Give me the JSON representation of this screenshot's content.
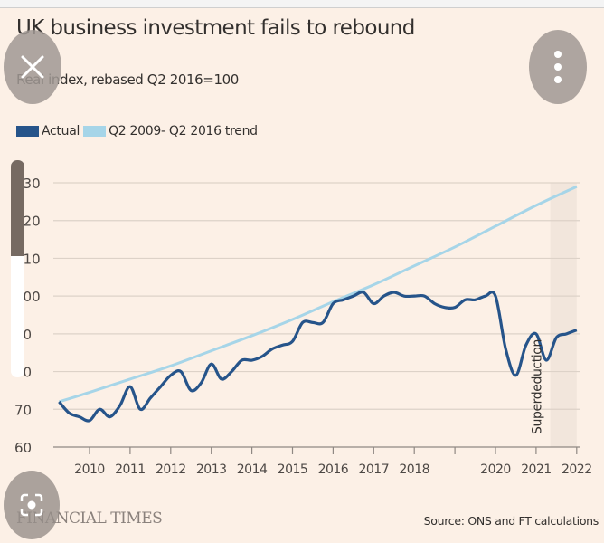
{
  "title": "UK business investment fails to rebound",
  "subtitle": "Real index, rebased Q2 2016=100",
  "source": "Source: ONS and FT calculations",
  "brand": "FINANCIAL TIMES",
  "ui": {
    "close_icon": "close-icon",
    "more_icon": "more-vertical-icon",
    "lens_icon": "lens-search-icon",
    "scroll_position": 0.44
  },
  "colors": {
    "background": "#fcf0e6",
    "actual": "#26548a",
    "trend": "#a6d5e8",
    "grid": "#ddd2c8"
  },
  "chart_data": {
    "type": "line",
    "title": "UK business investment fails to rebound",
    "subtitle": "Real index, rebased Q2 2016=100",
    "xlabel": "",
    "ylabel": "",
    "ylim": [
      60,
      130
    ],
    "yticks": [
      60,
      70,
      80,
      90,
      100,
      110,
      120,
      130
    ],
    "xtick_labels": [
      "2010",
      "2011",
      "2012",
      "2013",
      "2014",
      "2015",
      "2016",
      "2017",
      "2018",
      "",
      "2020",
      "2021",
      "2022"
    ],
    "xticks": [
      2010,
      2011,
      2012,
      2013,
      2014,
      2015,
      2016,
      2017,
      2018,
      2019,
      2020,
      2021,
      2022
    ],
    "grid": "horizontal",
    "legend": {
      "placement": "top-left",
      "entries": [
        "Actual",
        "Q2 2009- Q2 2016 trend"
      ]
    },
    "annotation": {
      "text": "Superdeduction",
      "shaded_from": 2021.35,
      "shaded_to": 2022.0
    },
    "series": [
      {
        "name": "Actual",
        "x": [
          2009.25,
          2009.5,
          2009.75,
          2010,
          2010.25,
          2010.5,
          2010.75,
          2011,
          2011.25,
          2011.5,
          2011.75,
          2012,
          2012.25,
          2012.5,
          2012.75,
          2013,
          2013.25,
          2013.5,
          2013.75,
          2014,
          2014.25,
          2014.5,
          2014.75,
          2015,
          2015.25,
          2015.5,
          2015.75,
          2016,
          2016.25,
          2016.5,
          2016.75,
          2017,
          2017.25,
          2017.5,
          2017.75,
          2018,
          2018.25,
          2018.5,
          2018.75,
          2019,
          2019.25,
          2019.5,
          2019.75,
          2020,
          2020.25,
          2020.5,
          2020.75,
          2021,
          2021.25,
          2021.5,
          2021.75,
          2022
        ],
        "y": [
          72,
          69,
          68,
          67,
          70,
          68,
          71,
          76,
          70,
          73,
          76,
          79,
          80,
          75,
          77,
          82,
          78,
          80,
          83,
          83,
          84,
          86,
          87,
          88,
          93,
          93,
          93,
          98,
          99,
          100,
          101,
          98,
          100,
          101,
          100,
          100,
          100,
          98,
          97,
          97,
          99,
          99,
          100,
          100,
          86,
          79,
          87,
          90,
          83,
          89,
          90,
          91
        ]
      },
      {
        "name": "Q2 2009- Q2 2016 trend",
        "x": [
          2009.25,
          2010,
          2011,
          2012,
          2013,
          2014,
          2015,
          2016,
          2017,
          2018,
          2019,
          2020,
          2021,
          2022
        ],
        "y": [
          72,
          74.5,
          78,
          81.5,
          85.5,
          89.5,
          93.8,
          98.5,
          103,
          108,
          113,
          118.5,
          124,
          129
        ]
      }
    ]
  }
}
